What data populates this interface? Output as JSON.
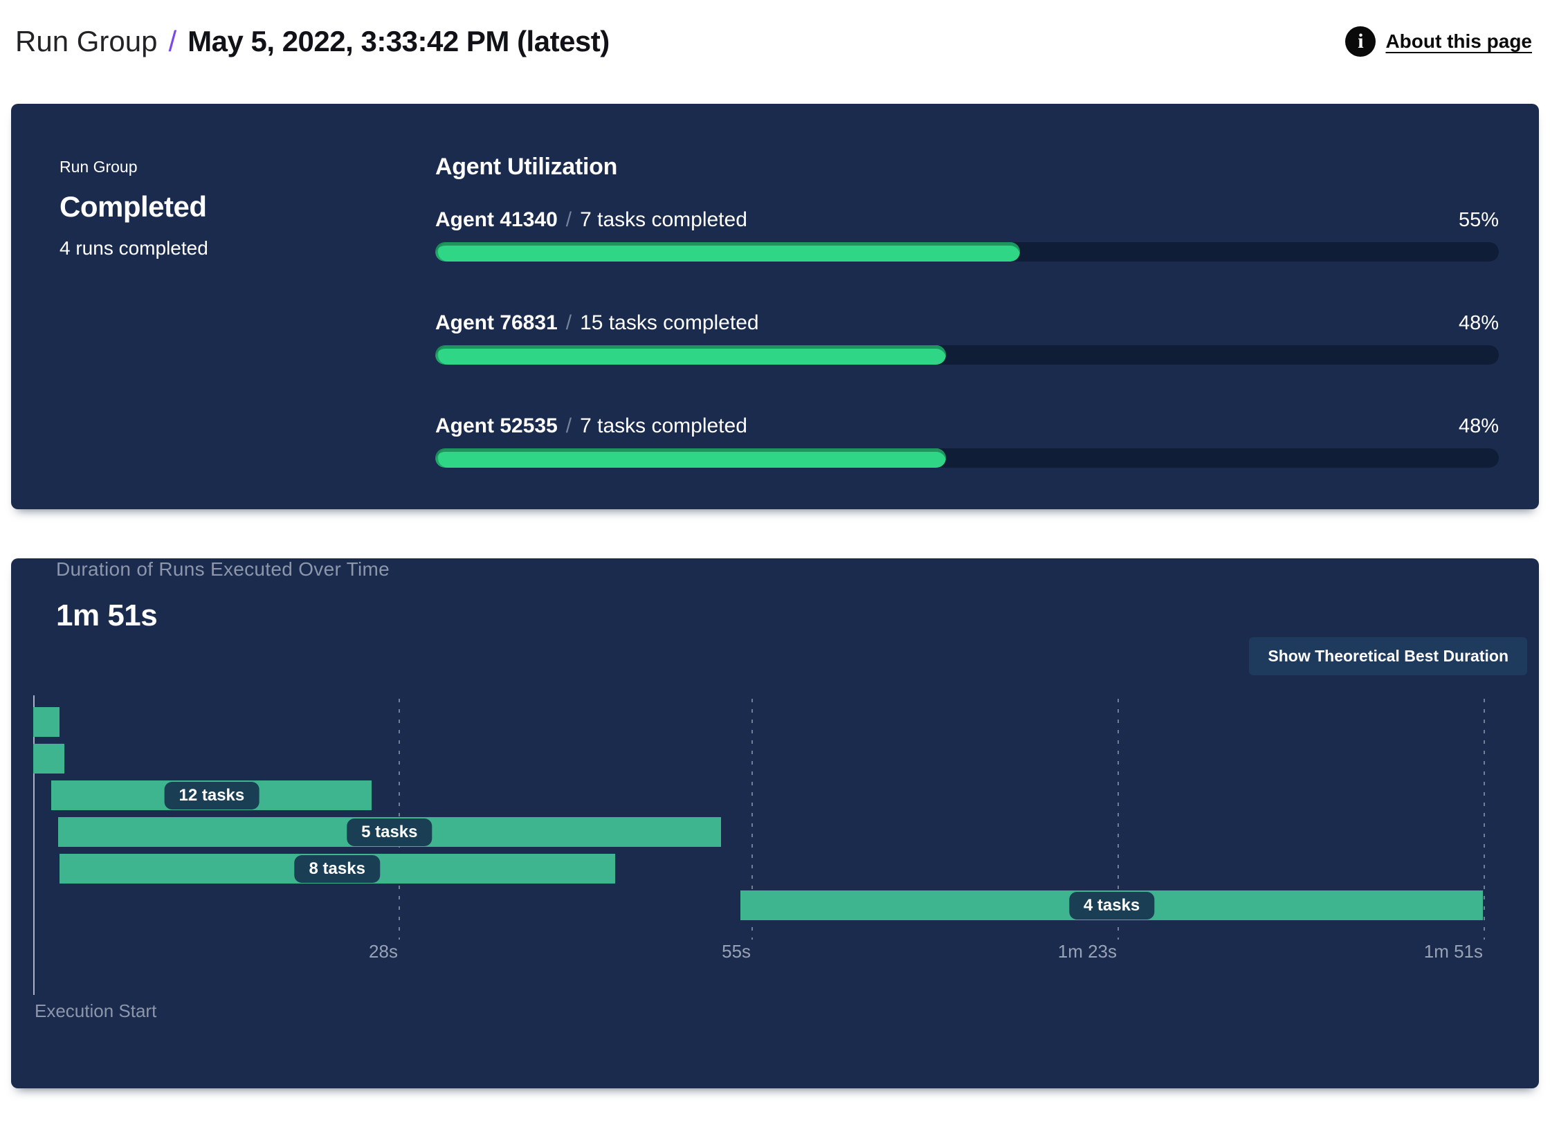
{
  "header": {
    "breadcrumb_root": "Run Group",
    "separator": "/",
    "title": "May 5, 2022, 3:33:42 PM (latest)",
    "about_label": "About this page",
    "info_icon_glyph": "i"
  },
  "status_panel": {
    "label": "Run Group",
    "status": "Completed",
    "runs_summary": "4 runs completed",
    "section_title": "Agent Utilization",
    "agent_separator": "/",
    "agents": [
      {
        "name": "Agent 41340",
        "tasks": "7 tasks completed",
        "percent": "55%"
      },
      {
        "name": "Agent 76831",
        "tasks": "15 tasks completed",
        "percent": "48%"
      },
      {
        "name": "Agent 52535",
        "tasks": "7 tasks completed",
        "percent": "48%"
      }
    ]
  },
  "duration_panel": {
    "title": "Duration of Runs Executed Over Time",
    "total_duration": "1m 51s",
    "button_label": "Show Theoretical Best Duration",
    "execution_start_label": "Execution Start"
  },
  "chart_data": [
    {
      "type": "bar",
      "title": "Agent Utilization",
      "categories": [
        "Agent 41340",
        "Agent 76831",
        "Agent 52535"
      ],
      "values": [
        55,
        48,
        48
      ],
      "unit": "%",
      "xlim": [
        0,
        100
      ]
    },
    {
      "type": "bar",
      "subtype": "gantt",
      "title": "Duration of Runs Executed Over Time",
      "total_duration_label": "1m 51s",
      "xlabel": "Execution Start",
      "max_seconds": 111,
      "ticks": [
        {
          "label": "28s",
          "seconds": 28
        },
        {
          "label": "55s",
          "seconds": 55
        },
        {
          "label": "1m 23s",
          "seconds": 83
        },
        {
          "label": "1m 51s",
          "seconds": 111
        }
      ],
      "rows": [
        {
          "start_s": 0,
          "end_s": 2.0,
          "label": ""
        },
        {
          "start_s": 0,
          "end_s": 2.4,
          "label": ""
        },
        {
          "start_s": 1.4,
          "end_s": 25.9,
          "label": "12 tasks"
        },
        {
          "start_s": 1.9,
          "end_s": 52.6,
          "label": "5 tasks"
        },
        {
          "start_s": 2.0,
          "end_s": 44.5,
          "label": "8 tasks"
        },
        {
          "start_s": 54.1,
          "end_s": 110.9,
          "label": "4 tasks"
        }
      ]
    }
  ],
  "colors": {
    "panel": "#1a2b4d",
    "track": "#0f1e36",
    "green": "#2ed686",
    "teal": "#3eb48f",
    "pill": "#1a3e54",
    "btn": "#1e3b5e",
    "purple": "#7a49e8"
  }
}
